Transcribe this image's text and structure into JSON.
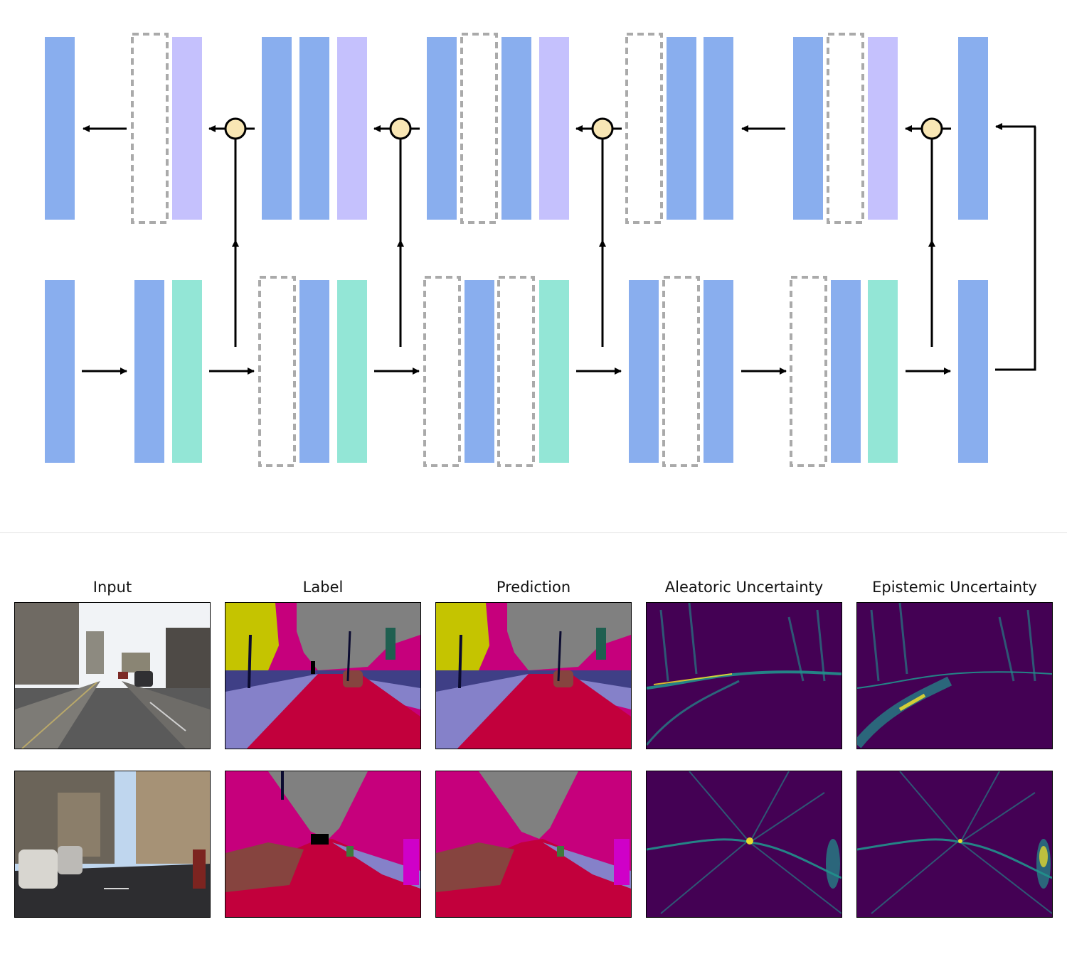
{
  "diagram": {
    "colors": {
      "feature_block": "#89aeee",
      "decoder_block": "#c5c1fd",
      "encoder_block": "#93e6d6",
      "placeholder_outline": "#aaaaaa",
      "merge_node": "#f8e6b4",
      "arrow": "#000000"
    }
  },
  "grid": {
    "titles": [
      "Input",
      "Label",
      "Prediction",
      "Aleatoric Uncertainty",
      "Epistemic Uncertainty"
    ],
    "rows": 2,
    "palette": {
      "road": "#c2003c",
      "sidewalk": "#8581c9",
      "building": "#c6007c",
      "sky": "#808080",
      "fence": "#3f3f86",
      "vegetation": "#c5c400",
      "car": "#86443f",
      "sign": "#1f5f50",
      "pole": "#0b0b30",
      "pedestrian": "#3e7a3c",
      "bicyclist": "#cf00c8",
      "viridis_low": "#440154",
      "viridis_mid": "#21918c",
      "viridis_high": "#fde725"
    }
  }
}
